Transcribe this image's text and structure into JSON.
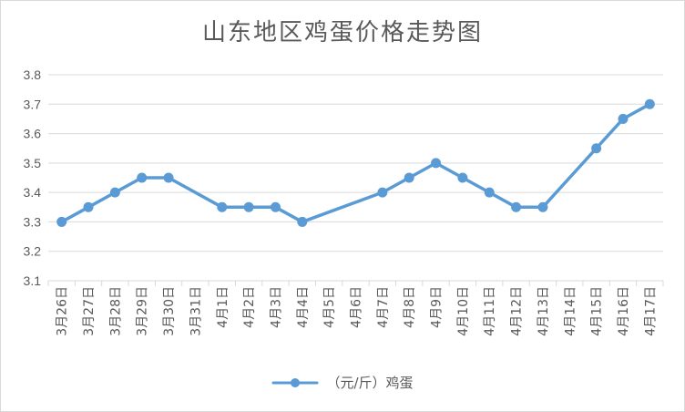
{
  "chart_data": {
    "type": "line",
    "title": "山东地区鸡蛋价格走势图",
    "xlabel": "",
    "ylabel": "",
    "categories": [
      "3月26日",
      "3月27日",
      "3月28日",
      "3月29日",
      "3月30日",
      "3月31日",
      "4月1日",
      "4月2日",
      "4月3日",
      "4月4日",
      "4月5日",
      "4月6日",
      "4月7日",
      "4月8日",
      "4月9日",
      "4月10日",
      "4月11日",
      "4月12日",
      "4月13日",
      "4月14日",
      "4月15日",
      "4月16日",
      "4月17日"
    ],
    "series": [
      {
        "name": "（元/斤）鸡蛋",
        "values": [
          3.3,
          3.35,
          3.4,
          3.45,
          3.45,
          null,
          3.35,
          3.35,
          3.35,
          3.3,
          null,
          null,
          3.4,
          3.45,
          3.5,
          3.45,
          3.4,
          3.35,
          3.35,
          null,
          3.55,
          3.65,
          3.7
        ],
        "color": "#5B9BD5"
      }
    ],
    "ylim": [
      3.1,
      3.8
    ],
    "yticks": [
      "3.1",
      "3.2",
      "3.3",
      "3.4",
      "3.5",
      "3.6",
      "3.7",
      "3.8"
    ],
    "grid": true,
    "legend": "bottom"
  }
}
